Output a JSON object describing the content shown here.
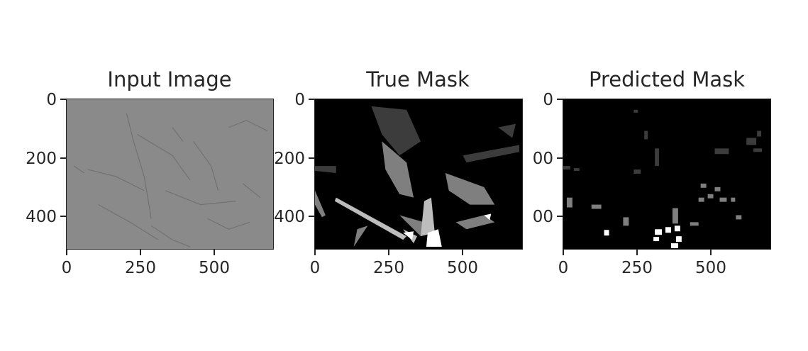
{
  "panels": [
    {
      "title": "Input Image"
    },
    {
      "title": "True Mask"
    },
    {
      "title": "Predicted Mask"
    }
  ],
  "x_ticks": [
    "0",
    "250",
    "500"
  ],
  "y_ticks": [
    "0",
    "200",
    "400"
  ],
  "y_ticks_clipped": [
    "0",
    "00",
    "00"
  ],
  "colors": {
    "input_bg": "#8a8a8a",
    "mask_bg": "#000000",
    "mask_dark_gray": "#3c3c3c",
    "mask_mid_gray": "#7f7f7f",
    "mask_light_gray": "#bdbdbd",
    "mask_white": "#ffffff"
  }
}
